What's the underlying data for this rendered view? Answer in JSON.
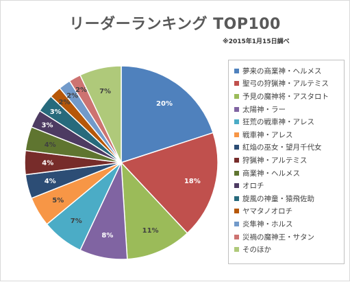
{
  "chart_data": {
    "type": "pie",
    "title": "リーダーランキング TOP100",
    "subtitle": "※2015年1月15日調べ",
    "legend_position": "right",
    "slices": [
      {
        "label": "夢来の商業神・ヘルメス",
        "value": 20,
        "display": "20%",
        "color": "#4f81bd"
      },
      {
        "label": "聖弓の狩猟神・アルテミス",
        "value": 18,
        "display": "18%",
        "color": "#c0504d"
      },
      {
        "label": "予見の魔神将・アスタロト",
        "value": 11,
        "display": "11%",
        "color": "#9bbb59"
      },
      {
        "label": "太陽神・ラー",
        "value": 8,
        "display": "8%",
        "color": "#8064a2"
      },
      {
        "label": "狂荒の戦車神・アレス",
        "value": 7,
        "display": "7%",
        "color": "#4bacc6"
      },
      {
        "label": "戦車神・アレス",
        "value": 5,
        "display": "5%",
        "color": "#f79646"
      },
      {
        "label": "紅焔の巫女・望月千代女",
        "value": 4,
        "display": "4%",
        "color": "#2c4d75"
      },
      {
        "label": "狩猟神・アルテミス",
        "value": 4,
        "display": "4%",
        "color": "#772c2a"
      },
      {
        "label": "商業神・ヘルメス",
        "value": 4,
        "display": "4%",
        "color": "#5f7530"
      },
      {
        "label": "オロチ",
        "value": 3,
        "display": "3%",
        "color": "#4d3b62"
      },
      {
        "label": "旋風の神童・猿飛佐助",
        "value": 3,
        "display": "3%",
        "color": "#276a7c"
      },
      {
        "label": "ヤマタノオロチ",
        "value": 2,
        "display": "2%",
        "color": "#b65708"
      },
      {
        "label": "炎隼神・ホルス",
        "value": 2,
        "display": "2%",
        "color": "#729aca"
      },
      {
        "label": "災禍の魔神王・サタン",
        "value": 2,
        "display": "2%",
        "color": "#cd7371"
      },
      {
        "label": "そのほか",
        "value": 7,
        "display": "7%",
        "color": "#afc97a"
      }
    ]
  }
}
